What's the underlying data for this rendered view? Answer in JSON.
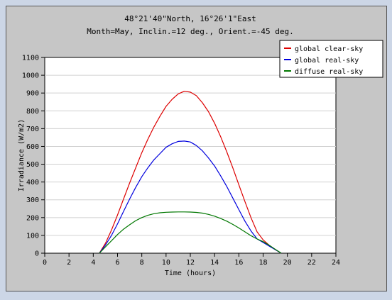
{
  "chart_data": {
    "type": "line",
    "title": "48°21'40\"North, 16°26'1\"East",
    "subtitle": "Month=May, Inclin.=12 deg., Orient.=-45 deg.",
    "xlabel": "Time (hours)",
    "ylabel": "Irradiance (W/m2)",
    "xlim": [
      0,
      24
    ],
    "ylim": [
      0,
      1100
    ],
    "xticks": [
      0,
      2,
      4,
      6,
      8,
      10,
      12,
      14,
      16,
      18,
      20,
      22,
      24
    ],
    "yticks": [
      0,
      100,
      200,
      300,
      400,
      500,
      600,
      700,
      800,
      900,
      1000,
      1100
    ],
    "grid": true,
    "legend_position": "top-right",
    "series": [
      {
        "name": "global clear-sky",
        "color": "#dd0000",
        "x": [
          4.5,
          5.0,
          5.5,
          6.0,
          6.5,
          7.0,
          7.5,
          8.0,
          8.5,
          9.0,
          9.5,
          10.0,
          10.5,
          11.0,
          11.5,
          12.0,
          12.5,
          13.0,
          13.5,
          14.0,
          14.5,
          15.0,
          15.5,
          16.0,
          16.5,
          17.0,
          17.5,
          18.0,
          18.5,
          19.0,
          19.5
        ],
        "y": [
          0,
          55,
          130,
          215,
          305,
          395,
          480,
          565,
          640,
          710,
          770,
          825,
          865,
          895,
          910,
          905,
          885,
          845,
          795,
          730,
          655,
          570,
          480,
          385,
          290,
          200,
          120,
          75,
          45,
          20,
          0
        ]
      },
      {
        "name": "global real-sky",
        "color": "#0000dd",
        "x": [
          4.5,
          5.0,
          5.5,
          6.0,
          6.5,
          7.0,
          7.5,
          8.0,
          8.5,
          9.0,
          9.5,
          10.0,
          10.5,
          11.0,
          11.5,
          12.0,
          12.5,
          13.0,
          13.5,
          14.0,
          14.5,
          15.0,
          15.5,
          16.0,
          16.5,
          17.0,
          17.5,
          18.0,
          18.5,
          19.0,
          19.5
        ],
        "y": [
          0,
          45,
          100,
          165,
          235,
          305,
          370,
          430,
          480,
          525,
          560,
          595,
          615,
          628,
          630,
          625,
          605,
          575,
          535,
          490,
          435,
          375,
          310,
          245,
          180,
          125,
          80,
          60,
          40,
          20,
          0
        ]
      },
      {
        "name": "diffuse real-sky",
        "color": "#007700",
        "x": [
          4.5,
          5.0,
          5.5,
          6.0,
          6.5,
          7.0,
          7.5,
          8.0,
          8.5,
          9.0,
          9.5,
          10.0,
          10.5,
          11.0,
          11.5,
          12.0,
          12.5,
          13.0,
          13.5,
          14.0,
          14.5,
          15.0,
          15.5,
          16.0,
          16.5,
          17.0,
          17.5,
          18.0,
          18.5,
          19.0,
          19.5
        ],
        "y": [
          0,
          35,
          70,
          105,
          135,
          160,
          183,
          200,
          213,
          222,
          227,
          230,
          231,
          232,
          232,
          231,
          229,
          225,
          218,
          208,
          195,
          180,
          162,
          142,
          120,
          98,
          80,
          65,
          45,
          22,
          0
        ]
      }
    ]
  }
}
